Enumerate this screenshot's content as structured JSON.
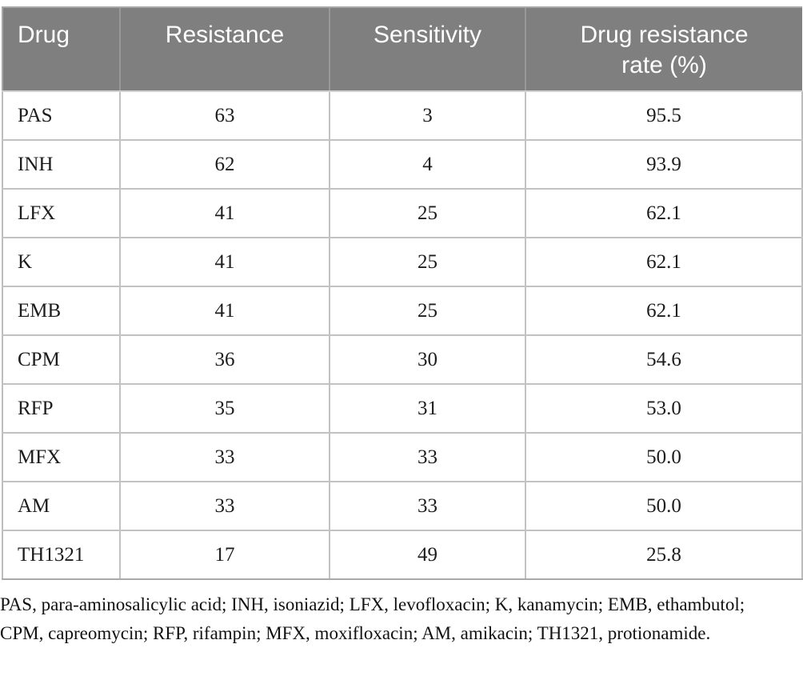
{
  "table": {
    "headers": [
      "Drug",
      "Resistance",
      "Sensitivity",
      "Drug resistance rate (%)"
    ],
    "rows": [
      [
        "PAS",
        "63",
        "3",
        "95.5"
      ],
      [
        "INH",
        "62",
        "4",
        "93.9"
      ],
      [
        "LFX",
        "41",
        "25",
        "62.1"
      ],
      [
        "K",
        "41",
        "25",
        "62.1"
      ],
      [
        "EMB",
        "41",
        "25",
        "62.1"
      ],
      [
        "CPM",
        "36",
        "30",
        "54.6"
      ],
      [
        "RFP",
        "35",
        "31",
        "53.0"
      ],
      [
        "MFX",
        "33",
        "33",
        "50.0"
      ],
      [
        "AM",
        "33",
        "33",
        "50.0"
      ],
      [
        "TH1321",
        "17",
        "49",
        "25.8"
      ]
    ]
  },
  "footnote": "PAS, para-aminosalicylic acid; INH, isoniazid; LFX, levofloxacin; K, kanamycin; EMB, ethambutol; CPM, capreomycin; RFP, rifampin; MFX, moxifloxacin; AM, amikacin; TH1321, protionamide.",
  "colors": {
    "header_bg": "#7f7f7f",
    "header_text": "#ffffff",
    "body_border": "#c2c2c2",
    "body_text": "#1c1c1c"
  }
}
